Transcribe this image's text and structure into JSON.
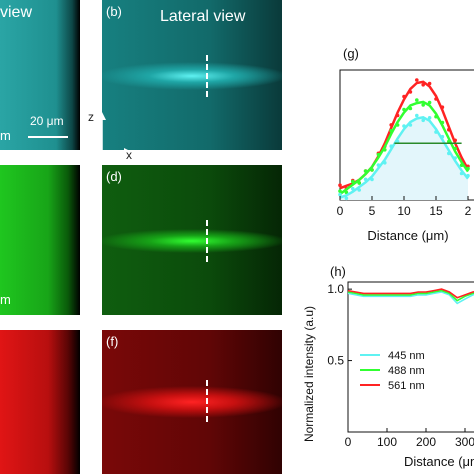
{
  "panels": {
    "a": {
      "label_fragment": "view",
      "scale_bar": "20 μm",
      "cut_unit": "m"
    },
    "b": {
      "label": "(b)",
      "title": "Lateral view"
    },
    "c": {},
    "d": {
      "label": "(d)"
    },
    "e": {
      "unit_fragment": "m"
    },
    "f": {
      "label": "(f)"
    }
  },
  "axes_inset": {
    "z": "z",
    "x": "x"
  },
  "colors": {
    "cyan": "#5ff2f2",
    "green": "#31ff31",
    "red": "#ff2323"
  },
  "chart_data": [
    {
      "panel": "(g)",
      "type": "line",
      "xlabel": "Distance (μm)",
      "ylabel": "",
      "xlim": [
        0,
        20
      ],
      "xticks": [
        "0",
        "5",
        "10",
        "15",
        "2"
      ],
      "ylim": [
        0,
        1.1
      ],
      "legend": "none",
      "fwhm_bar": {
        "x_start": 8.5,
        "x_end": 19.0,
        "y": 0.48
      },
      "series": [
        {
          "color": "#ff2323",
          "x": [
            0,
            1,
            2,
            3,
            4,
            5,
            6,
            7,
            8,
            9,
            10,
            11,
            12,
            13,
            14,
            15,
            16,
            17,
            18,
            19,
            20
          ],
          "y": [
            0.1,
            0.12,
            0.14,
            0.17,
            0.22,
            0.28,
            0.37,
            0.48,
            0.61,
            0.74,
            0.85,
            0.94,
            0.99,
            1.0,
            0.96,
            0.88,
            0.76,
            0.62,
            0.48,
            0.36,
            0.26
          ]
        },
        {
          "color": "#31ff31",
          "x": [
            0,
            1,
            2,
            3,
            4,
            5,
            6,
            7,
            8,
            9,
            10,
            11,
            12,
            13,
            14,
            15,
            16,
            17,
            18,
            19,
            20
          ],
          "y": [
            0.05,
            0.09,
            0.13,
            0.17,
            0.22,
            0.28,
            0.36,
            0.45,
            0.56,
            0.66,
            0.74,
            0.8,
            0.82,
            0.83,
            0.8,
            0.73,
            0.63,
            0.52,
            0.41,
            0.32,
            0.24
          ]
        },
        {
          "color": "#5ff2f2",
          "x": [
            0,
            1,
            2,
            3,
            4,
            5,
            6,
            7,
            8,
            9,
            10,
            11,
            12,
            13,
            14,
            15,
            16,
            17,
            18,
            19,
            20
          ],
          "y": [
            0.02,
            0.04,
            0.07,
            0.11,
            0.15,
            0.2,
            0.27,
            0.34,
            0.43,
            0.52,
            0.6,
            0.66,
            0.69,
            0.7,
            0.67,
            0.6,
            0.51,
            0.42,
            0.33,
            0.25,
            0.18
          ]
        }
      ]
    },
    {
      "panel": "(h)",
      "type": "line",
      "xlabel": "Distance (μm",
      "ylabel": "Normalized intensity (a.u)",
      "xlim": [
        0,
        400
      ],
      "xticks": [
        "0",
        "100",
        "200",
        "300"
      ],
      "ylim": [
        0,
        1.05
      ],
      "yticks": [
        "0.5",
        "1.0"
      ],
      "legend": "center-left",
      "series": [
        {
          "name": "445 nm",
          "color": "#5ff2f2",
          "x": [
            0,
            20,
            40,
            60,
            80,
            100,
            120,
            140,
            160,
            180,
            200,
            220,
            240,
            260,
            280,
            300,
            320,
            340,
            360,
            380,
            400
          ],
          "y": [
            0.97,
            0.96,
            0.95,
            0.95,
            0.95,
            0.95,
            0.95,
            0.95,
            0.95,
            0.96,
            0.96,
            0.97,
            0.98,
            0.96,
            0.9,
            0.93,
            0.96,
            0.97,
            0.96,
            0.96,
            0.96
          ]
        },
        {
          "name": "488 nm",
          "color": "#31ff31",
          "x": [
            0,
            20,
            40,
            60,
            80,
            100,
            120,
            140,
            160,
            180,
            200,
            220,
            240,
            260,
            280,
            300,
            320,
            340,
            360,
            380,
            400
          ],
          "y": [
            0.98,
            0.97,
            0.96,
            0.96,
            0.96,
            0.96,
            0.96,
            0.96,
            0.96,
            0.97,
            0.97,
            0.98,
            0.99,
            0.97,
            0.92,
            0.95,
            0.97,
            0.98,
            0.97,
            0.97,
            0.97
          ]
        },
        {
          "name": "561 nm",
          "color": "#ff2323",
          "x": [
            0,
            20,
            40,
            60,
            80,
            100,
            120,
            140,
            160,
            180,
            200,
            220,
            240,
            260,
            280,
            300,
            320,
            340,
            360,
            380,
            400
          ],
          "y": [
            0.99,
            0.98,
            0.97,
            0.97,
            0.97,
            0.97,
            0.97,
            0.97,
            0.97,
            0.98,
            0.98,
            0.99,
            1.0,
            0.98,
            0.94,
            0.96,
            0.98,
            0.99,
            0.98,
            0.98,
            0.98
          ]
        }
      ]
    }
  ]
}
